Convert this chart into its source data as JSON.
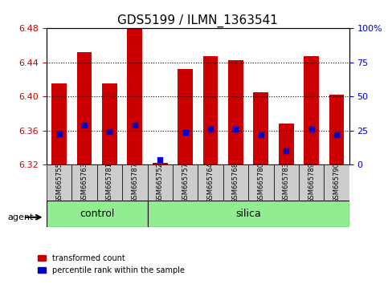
{
  "title": "GDS5199 / ILMN_1363541",
  "samples": [
    "GSM665755",
    "GSM665763",
    "GSM665781",
    "GSM665787",
    "GSM665752",
    "GSM665757",
    "GSM665764",
    "GSM665768",
    "GSM665780",
    "GSM665783",
    "GSM665789",
    "GSM665790"
  ],
  "groups": [
    "control",
    "control",
    "control",
    "control",
    "silica",
    "silica",
    "silica",
    "silica",
    "silica",
    "silica",
    "silica",
    "silica"
  ],
  "transformed_count": [
    6.415,
    6.452,
    6.415,
    6.479,
    6.322,
    6.432,
    6.447,
    6.443,
    6.405,
    6.368,
    6.447,
    6.402
  ],
  "percentile_rank": [
    6.356,
    6.366,
    6.359,
    6.366,
    6.326,
    6.358,
    6.362,
    6.362,
    6.355,
    6.336,
    6.362,
    6.355
  ],
  "bar_bottom": 6.32,
  "ylim_left": [
    6.32,
    6.48
  ],
  "ylim_right": [
    0,
    100
  ],
  "yticks_left": [
    6.32,
    6.36,
    6.4,
    6.44,
    6.48
  ],
  "yticks_right": [
    0,
    25,
    50,
    75,
    100
  ],
  "ytick_labels_right": [
    "0",
    "25",
    "50",
    "75",
    "100%"
  ],
  "bar_color": "#cc0000",
  "percentile_color": "#0000cc",
  "bar_width": 0.6,
  "control_color": "#90ee90",
  "silica_color": "#90ee90",
  "agent_label": "agent",
  "legend_items": [
    "transformed count",
    "percentile rank within the sample"
  ],
  "legend_colors": [
    "#cc0000",
    "#0000cc"
  ],
  "left_axis_color": "#cc0000",
  "right_axis_color": "#0000cc"
}
